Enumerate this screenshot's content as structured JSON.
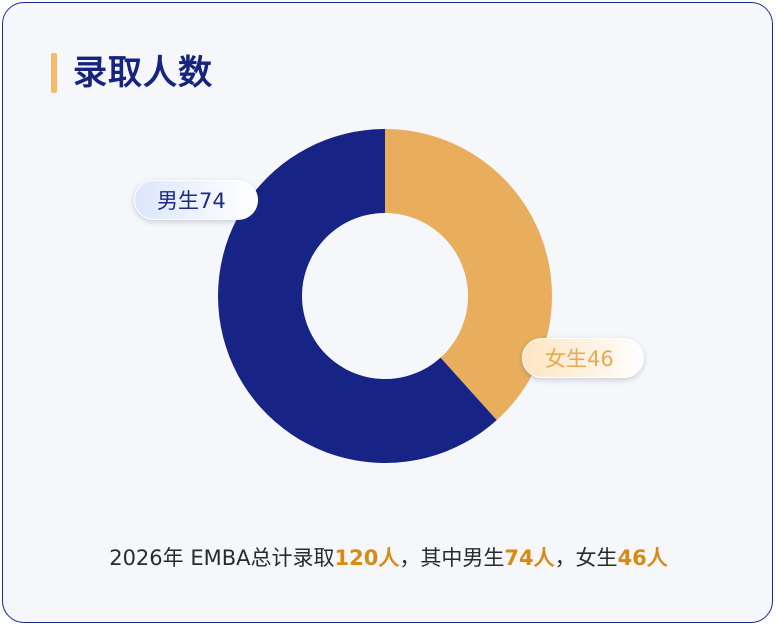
{
  "title": "录取人数",
  "chart_data": {
    "type": "pie",
    "variant": "donut",
    "slices": [
      {
        "label": "女生",
        "value": 46,
        "color": "#e8ae5e"
      },
      {
        "label": "男生",
        "value": 74,
        "color": "#172485"
      }
    ],
    "labels": {
      "male": "男生74",
      "female": "女生46"
    }
  },
  "summary": {
    "prefix": "2026年 EMBA总计录取",
    "total": "120人",
    "mid1": "，其中男生",
    "male": "74人",
    "mid2": "，女生",
    "female": "46人"
  },
  "colors": {
    "accent_bar": "#f4b969",
    "title": "#16237f",
    "highlight": "#d98a14"
  }
}
